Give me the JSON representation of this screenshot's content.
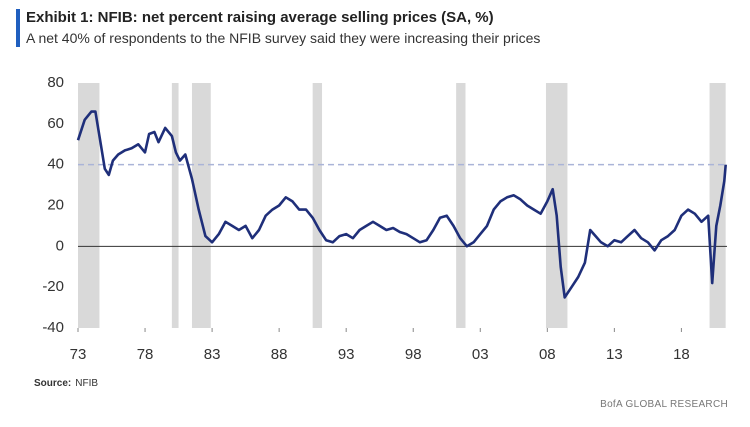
{
  "chart_data": {
    "type": "line",
    "title": "Exhibit 1: NFIB: net percent raising average selling prices (SA, %)",
    "subtitle": "A net 40% of respondents to the NFIB survey said they were increasing their prices",
    "source_label": "Source:",
    "source": "NFIB",
    "credit": "BofA GLOBAL RESEARCH",
    "color": "#1f2f7a",
    "reference_line": 40,
    "reference_color": "#aab4d8",
    "recession_color": "#d9d9d9",
    "recessions": [
      [
        1973.0,
        1974.6
      ],
      [
        1980.0,
        1980.5
      ],
      [
        1981.5,
        1982.9
      ],
      [
        1990.5,
        1991.2
      ],
      [
        2001.2,
        2001.9
      ],
      [
        2007.9,
        2009.5
      ],
      [
        2020.1,
        2021.3
      ]
    ],
    "xlim": [
      1973,
      2021.4
    ],
    "xticks": [
      {
        "value": 1973,
        "label": "73"
      },
      {
        "value": 1978,
        "label": "78"
      },
      {
        "value": 1983,
        "label": "83"
      },
      {
        "value": 1988,
        "label": "88"
      },
      {
        "value": 1993,
        "label": "93"
      },
      {
        "value": 1998,
        "label": "98"
      },
      {
        "value": 2003,
        "label": "03"
      },
      {
        "value": 2008,
        "label": "08"
      },
      {
        "value": 2013,
        "label": "13"
      },
      {
        "value": 2018,
        "label": "18"
      }
    ],
    "ylim": [
      -40,
      80
    ],
    "yticks": [
      -40,
      -20,
      0,
      20,
      40,
      60,
      80
    ],
    "x": [
      1973.0,
      1973.5,
      1974.0,
      1974.3,
      1974.7,
      1975.0,
      1975.3,
      1975.6,
      1976.0,
      1976.5,
      1977.0,
      1977.5,
      1978.0,
      1978.3,
      1978.7,
      1979.0,
      1979.5,
      1980.0,
      1980.3,
      1980.6,
      1981.0,
      1981.5,
      1982.0,
      1982.5,
      1983.0,
      1983.5,
      1984.0,
      1984.5,
      1985.0,
      1985.5,
      1986.0,
      1986.5,
      1987.0,
      1987.5,
      1988.0,
      1988.5,
      1989.0,
      1989.5,
      1990.0,
      1990.5,
      1991.0,
      1991.5,
      1992.0,
      1992.5,
      1993.0,
      1993.5,
      1994.0,
      1994.5,
      1995.0,
      1995.5,
      1996.0,
      1996.5,
      1997.0,
      1997.5,
      1998.0,
      1998.5,
      1999.0,
      1999.5,
      2000.0,
      2000.5,
      2001.0,
      2001.5,
      2002.0,
      2002.5,
      2003.0,
      2003.5,
      2004.0,
      2004.5,
      2005.0,
      2005.5,
      2006.0,
      2006.5,
      2007.0,
      2007.5,
      2008.0,
      2008.4,
      2008.7,
      2009.0,
      2009.3,
      2009.8,
      2010.3,
      2010.8,
      2011.2,
      2011.6,
      2012.0,
      2012.5,
      2013.0,
      2013.5,
      2014.0,
      2014.5,
      2015.0,
      2015.5,
      2016.0,
      2016.5,
      2017.0,
      2017.5,
      2018.0,
      2018.5,
      2019.0,
      2019.5,
      2020.0,
      2020.3,
      2020.6,
      2020.9,
      2021.2,
      2021.3
    ],
    "values": [
      52,
      62,
      66,
      66,
      50,
      38,
      35,
      42,
      45,
      47,
      48,
      50,
      46,
      55,
      56,
      51,
      58,
      54,
      46,
      42,
      45,
      33,
      18,
      5,
      2,
      6,
      12,
      10,
      8,
      10,
      4,
      8,
      15,
      18,
      20,
      24,
      22,
      18,
      18,
      14,
      8,
      3,
      2,
      5,
      6,
      4,
      8,
      10,
      12,
      10,
      8,
      9,
      7,
      6,
      4,
      2,
      3,
      8,
      14,
      15,
      10,
      4,
      0,
      2,
      6,
      10,
      18,
      22,
      24,
      25,
      23,
      20,
      18,
      16,
      22,
      28,
      15,
      -10,
      -25,
      -20,
      -15,
      -8,
      8,
      5,
      2,
      0,
      3,
      2,
      5,
      8,
      4,
      2,
      -2,
      3,
      5,
      8,
      15,
      18,
      16,
      12,
      15,
      -18,
      10,
      20,
      32,
      40
    ]
  }
}
